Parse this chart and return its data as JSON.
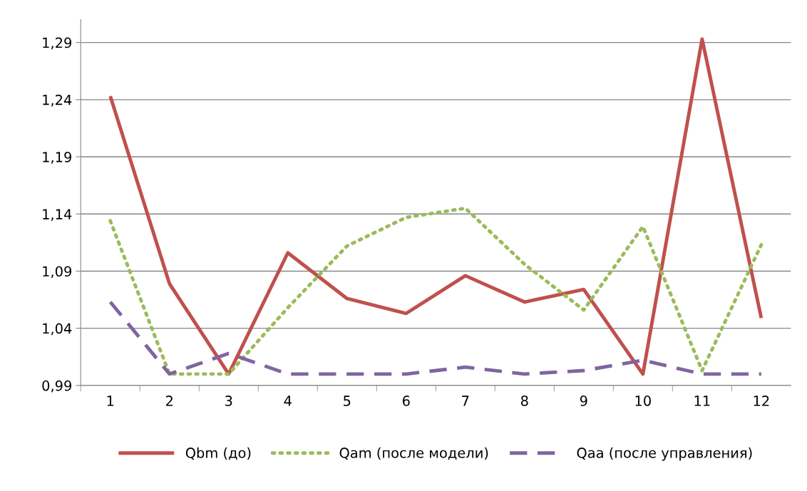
{
  "chart_data": {
    "type": "line",
    "categories": [
      "1",
      "2",
      "3",
      "4",
      "5",
      "6",
      "7",
      "8",
      "9",
      "10",
      "11",
      "12"
    ],
    "series": [
      {
        "name": "Qbm (до)",
        "color": "#c0504d",
        "line_style": "solid",
        "values": [
          1.243,
          1.079,
          1.0,
          1.106,
          1.066,
          1.053,
          1.086,
          1.063,
          1.074,
          1.0,
          1.293,
          1.049
        ]
      },
      {
        "name": "Qam (после модели)",
        "color": "#9bbb59",
        "line_style": "dotted",
        "values": [
          1.134,
          1.0,
          1.0,
          1.058,
          1.112,
          1.137,
          1.145,
          1.096,
          1.056,
          1.129,
          1.003,
          1.113
        ]
      },
      {
        "name": "Qaa (после управления)",
        "color": "#8064a2",
        "line_style": "dashed",
        "values": [
          1.063,
          1.0,
          1.018,
          1.0,
          1.0,
          1.0,
          1.006,
          1.0,
          1.003,
          1.012,
          1.0,
          1.0
        ]
      }
    ],
    "ylim": [
      0.99,
      1.31
    ],
    "yticks": [
      {
        "value": 0.99,
        "label": "0,99"
      },
      {
        "value": 1.04,
        "label": "1,04"
      },
      {
        "value": 1.09,
        "label": "1,09"
      },
      {
        "value": 1.14,
        "label": "1,14"
      },
      {
        "value": 1.19,
        "label": "1,19"
      },
      {
        "value": 1.24,
        "label": "1,24"
      },
      {
        "value": 1.29,
        "label": "1,29"
      }
    ],
    "grid": "y",
    "legend": "bottom",
    "marker": "none"
  }
}
